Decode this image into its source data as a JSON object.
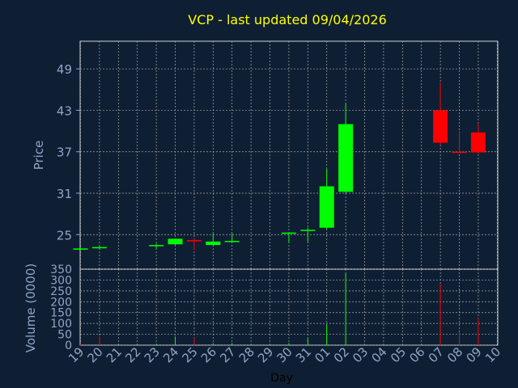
{
  "chart_data": [
    {
      "type": "candlestick",
      "title": "VCP - last updated 09/04/2026",
      "ylabel": "Price",
      "xlabel": "",
      "ylim": [
        20,
        53
      ],
      "yticks": [
        25,
        31,
        37,
        43,
        49
      ],
      "grid": true,
      "series": [
        {
          "day": "19",
          "open": 23.0,
          "high": 23.1,
          "low": 23.0,
          "close": 23.0
        },
        {
          "day": "20",
          "open": 23.1,
          "high": 23.4,
          "low": 22.9,
          "close": 23.2
        },
        {
          "day": "23",
          "open": 23.4,
          "high": 23.7,
          "low": 23.0,
          "close": 23.5
        },
        {
          "day": "24",
          "open": 23.6,
          "high": 24.2,
          "low": 23.5,
          "close": 24.4
        },
        {
          "day": "25",
          "open": 24.2,
          "high": 24.5,
          "low": 22.8,
          "close": 24.1
        },
        {
          "day": "26",
          "open": 23.5,
          "high": 25.2,
          "low": 23.5,
          "close": 24.0
        },
        {
          "day": "27",
          "open": 24.0,
          "high": 25.2,
          "low": 23.9,
          "close": 24.1
        },
        {
          "day": "30",
          "open": 25.2,
          "high": 25.3,
          "low": 23.8,
          "close": 25.3
        },
        {
          "day": "31",
          "open": 25.6,
          "high": 26.0,
          "low": 23.9,
          "close": 25.7
        },
        {
          "day": "01",
          "open": 26.0,
          "high": 34.5,
          "low": 25.8,
          "close": 32.0
        },
        {
          "day": "02",
          "open": 31.2,
          "high": 44.0,
          "low": 31.0,
          "close": 41.0
        },
        {
          "day": "07",
          "open": 43.0,
          "high": 47.0,
          "low": 38.0,
          "close": 38.3
        },
        {
          "day": "08",
          "open": 37.0,
          "high": 40.0,
          "low": 36.8,
          "close": 36.9
        },
        {
          "day": "09",
          "open": 39.8,
          "high": 41.0,
          "low": 36.7,
          "close": 36.9
        }
      ]
    },
    {
      "type": "bar",
      "title": "",
      "xlabel": "Day",
      "ylabel": "Volume (0000)",
      "ylim": [
        0,
        350
      ],
      "yticks": [
        0,
        50,
        100,
        150,
        200,
        250,
        300,
        350
      ],
      "grid": true,
      "categories": [
        "19",
        "20",
        "21",
        "22",
        "23",
        "24",
        "25",
        "26",
        "27",
        "28",
        "29",
        "30",
        "31",
        "01",
        "02",
        "03",
        "04",
        "05",
        "06",
        "07",
        "08",
        "09",
        "10"
      ],
      "series": [
        {
          "values": [
            5,
            40,
            0,
            0,
            5,
            40,
            35,
            10,
            10,
            0,
            0,
            10,
            30,
            95,
            330,
            0,
            0,
            0,
            0,
            280,
            60,
            125,
            0
          ],
          "colors": [
            "red",
            "red",
            "red",
            "red",
            "green",
            "green",
            "red",
            "green",
            "green",
            "green",
            "green",
            "green",
            "green",
            "green",
            "green",
            "green",
            "green",
            "green",
            "green",
            "red",
            "red",
            "red",
            "red"
          ]
        }
      ]
    }
  ],
  "colors": {
    "background": "#0f1f33",
    "up": "#00ff00",
    "down": "#ff0000",
    "title": "#ffff00",
    "axis_text": "#8fa5c7",
    "xlabel_text": "#000000",
    "grid": "#aaaaaa"
  }
}
